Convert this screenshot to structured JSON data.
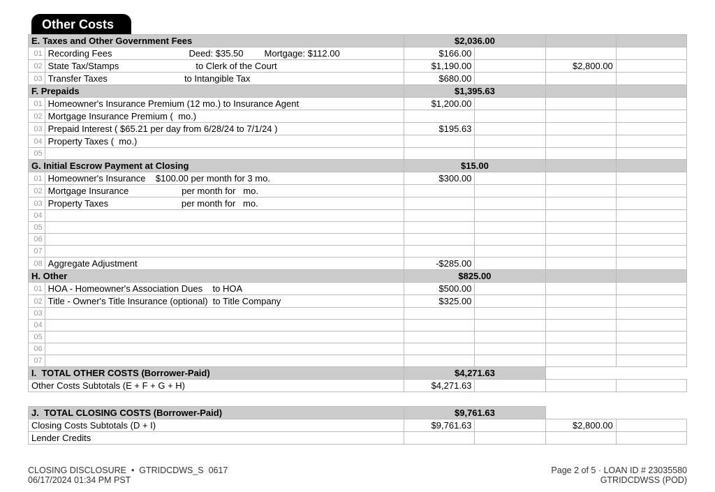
{
  "title": "Other Costs",
  "sections": {
    "E": {
      "label": "E. Taxes and Other Government Fees",
      "total": "$2,036.00",
      "rows": [
        {
          "n": "01",
          "desc": "Recording Fees",
          "extra1": "Deed: $35.50",
          "extra2": "Mortgage: $112.00",
          "a1": "$166.00"
        },
        {
          "n": "02",
          "desc": "State Tax/Stamps",
          "extra1": "to Clerk of the Court",
          "a1": "$1,190.00",
          "a3": "$2,800.00"
        },
        {
          "n": "03",
          "desc": "Transfer Taxes",
          "extra1": "to Intangible Tax",
          "a1": "$680.00"
        }
      ]
    },
    "F": {
      "label": "F. Prepaids",
      "total": "$1,395.63",
      "rows": [
        {
          "n": "01",
          "desc": "Homeowner's Insurance Premium (12 mo.) to Insurance Agent",
          "a1": "$1,200.00"
        },
        {
          "n": "02",
          "desc": "Mortgage Insurance Premium (  mo.)"
        },
        {
          "n": "03",
          "desc": "Prepaid Interest ( $65.21 per day from 6/28/24 to 7/1/24 )",
          "a1": "$195.63"
        },
        {
          "n": "04",
          "desc": "Property Taxes (  mo.)"
        },
        {
          "n": "05",
          "desc": ""
        }
      ]
    },
    "G": {
      "label": "G. Initial Escrow Payment at Closing",
      "total": "$15.00",
      "rows": [
        {
          "n": "01",
          "desc": "Homeowner's Insurance    $100.00 per month for 3 mo.",
          "a1": "$300.00"
        },
        {
          "n": "02",
          "desc": "Mortgage Insurance                     per month for   mo."
        },
        {
          "n": "03",
          "desc": "Property Taxes                             per month for   mo."
        },
        {
          "n": "04",
          "desc": ""
        },
        {
          "n": "05",
          "desc": ""
        },
        {
          "n": "06",
          "desc": ""
        },
        {
          "n": "07",
          "desc": ""
        },
        {
          "n": "08",
          "desc": "Aggregate Adjustment",
          "a1": "-$285.00"
        }
      ]
    },
    "H": {
      "label": "H. Other",
      "total": "$825.00",
      "rows": [
        {
          "n": "01",
          "desc": "HOA - Homeowner's Association Dues    to HOA",
          "a1": "$500.00"
        },
        {
          "n": "02",
          "desc": "Title - Owner's Title Insurance (optional)  to Title Company",
          "a1": "$325.00"
        },
        {
          "n": "03",
          "desc": ""
        },
        {
          "n": "04",
          "desc": ""
        },
        {
          "n": "05",
          "desc": ""
        },
        {
          "n": "06",
          "desc": ""
        },
        {
          "n": "07",
          "desc": ""
        }
      ]
    },
    "I": {
      "label": "I.  TOTAL OTHER COSTS (Borrower-Paid)",
      "total": "$4,271.63",
      "sub_label": "Other Costs Subtotals (E + F + G + H)",
      "sub_amt": "$4,271.63"
    },
    "J": {
      "label": "J.  TOTAL CLOSING COSTS (Borrower-Paid)",
      "total": "$9,761.63",
      "rows": [
        {
          "desc": "Closing Costs Subtotals (D + I)",
          "a1": "$9,761.63",
          "a3": "$2,800.00"
        },
        {
          "desc": "Lender Credits"
        }
      ]
    }
  },
  "footer": {
    "l1": "CLOSING DISCLOSURE  •  GTRIDCDWS_S  0617",
    "r1": "Page 2 of 5 · LOAN ID # 23035580",
    "l2": "06/17/2024 01:34 PM PST",
    "r2": "GTRIDCDWSS (POD)"
  }
}
